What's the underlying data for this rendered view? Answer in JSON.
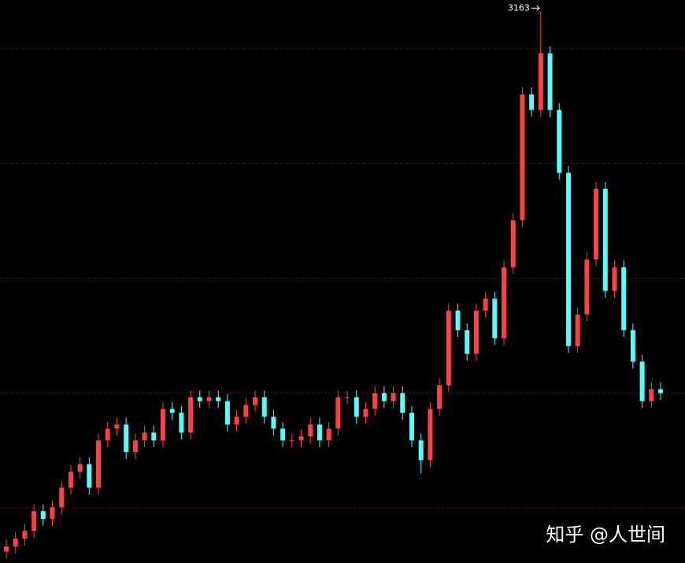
{
  "chart_data": {
    "type": "candlestick",
    "open": [
      810,
      832,
      866,
      900,
      986,
      952,
      1003,
      1088,
      1157,
      1191,
      1088,
      1294,
      1345,
      1363,
      1243,
      1294,
      1328,
      1294,
      1431,
      1414,
      1328,
      1482,
      1465,
      1482,
      1465,
      1363,
      1397,
      1448,
      1482,
      1397,
      1345,
      1294,
      1294,
      1311,
      1363,
      1294,
      1345,
      1482,
      1482,
      1397,
      1431,
      1500,
      1465,
      1500,
      1414,
      1294,
      1208,
      1431,
      1534,
      1859,
      1774,
      1671,
      1859,
      1911,
      1739,
      2048,
      2253,
      2801,
      2733,
      2980,
      2733,
      2459,
      1705,
      1842,
      2082,
      2390,
      1945,
      2048,
      1774,
      1637,
      1465,
      1517
    ],
    "high": [
      862,
      896,
      930,
      1016,
      1016,
      1033,
      1118,
      1187,
      1221,
      1221,
      1324,
      1375,
      1393,
      1393,
      1324,
      1358,
      1358,
      1461,
      1461,
      1444,
      1512,
      1512,
      1512,
      1512,
      1495,
      1427,
      1478,
      1512,
      1512,
      1427,
      1375,
      1324,
      1341,
      1393,
      1393,
      1375,
      1512,
      1512,
      1512,
      1461,
      1530,
      1530,
      1530,
      1530,
      1444,
      1324,
      1461,
      1564,
      1889,
      1889,
      1804,
      1889,
      1941,
      1941,
      2078,
      2283,
      2831,
      2831,
      3163,
      3010,
      2763,
      2489,
      1872,
      2112,
      2420,
      2420,
      2078,
      2078,
      1804,
      1667,
      1547,
      1547
    ],
    "low": [
      780,
      802,
      836,
      870,
      922,
      922,
      973,
      1058,
      1127,
      1058,
      1058,
      1264,
      1315,
      1213,
      1213,
      1264,
      1264,
      1264,
      1384,
      1298,
      1298,
      1435,
      1435,
      1435,
      1333,
      1333,
      1367,
      1418,
      1367,
      1315,
      1264,
      1264,
      1264,
      1281,
      1264,
      1264,
      1315,
      1452,
      1367,
      1367,
      1401,
      1435,
      1435,
      1384,
      1264,
      1150,
      1178,
      1401,
      1504,
      1744,
      1641,
      1641,
      1829,
      1709,
      1709,
      2018,
      2223,
      2703,
      2703,
      2703,
      2429,
      1675,
      1675,
      1812,
      2052,
      1915,
      1915,
      1744,
      1607,
      1435,
      1435,
      1470
    ],
    "close": [
      832,
      866,
      900,
      986,
      952,
      1003,
      1088,
      1157,
      1191,
      1088,
      1294,
      1345,
      1363,
      1243,
      1294,
      1328,
      1294,
      1431,
      1414,
      1328,
      1482,
      1465,
      1482,
      1465,
      1363,
      1397,
      1448,
      1482,
      1397,
      1345,
      1294,
      1294,
      1311,
      1363,
      1294,
      1345,
      1482,
      1482,
      1397,
      1431,
      1500,
      1465,
      1500,
      1414,
      1294,
      1208,
      1431,
      1534,
      1859,
      1774,
      1671,
      1859,
      1911,
      1739,
      2048,
      2253,
      2801,
      2733,
      2980,
      2733,
      2459,
      1705,
      1842,
      2082,
      2390,
      1945,
      2048,
      1774,
      1637,
      1465,
      1517,
      1500
    ],
    "up_color": "#ff4040",
    "down_color": "#54fcfc",
    "ylim": [
      760,
      3212
    ],
    "gridlines": [
      1000,
      1500,
      2000,
      2500,
      3000
    ],
    "grid_color": "#8b0000",
    "peak_index": 58,
    "watermark": "知乎 @人世间"
  }
}
